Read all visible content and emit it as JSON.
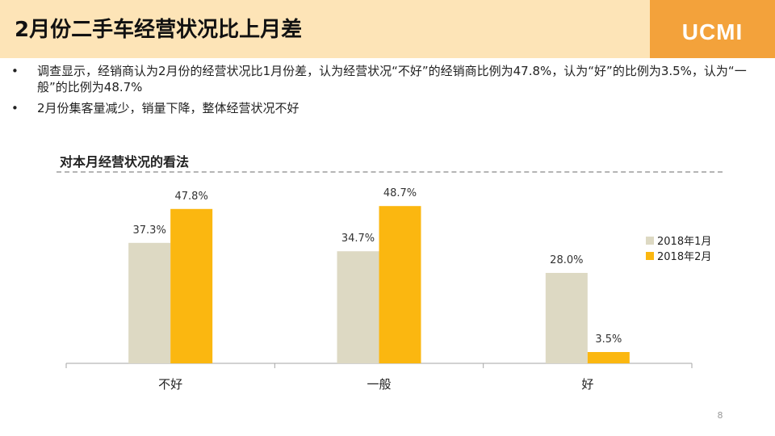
{
  "header": {
    "title": "2月份二手车经营状况比上月差",
    "logo": "UCMI"
  },
  "bullets": [
    {
      "marker": "•",
      "text": "调查显示，经销商认为2月份的经营状况比1月份差，认为经营状况“不好”的经销商比例为47.8%，认为“好”的比例为3.5%，认为“一般”的比例为48.7%"
    },
    {
      "marker": "•",
      "text": "2月份集客量减少，销量下降，整体经营状况不好"
    }
  ],
  "chart_title": "对本月经营状况的看法",
  "chart_data": {
    "type": "bar",
    "categories": [
      "不好",
      "一般",
      "好"
    ],
    "series": [
      {
        "name": "2018年1月",
        "values": [
          37.3,
          34.7,
          28.0
        ],
        "labels": [
          "37.3%",
          "34.7%",
          "28.0%"
        ],
        "color": "#ddd9c3"
      },
      {
        "name": "2018年2月",
        "values": [
          47.8,
          48.7,
          3.5
        ],
        "labels": [
          "47.8%",
          "48.7%",
          "3.5%"
        ],
        "color": "#fbb710"
      }
    ],
    "ylim": [
      0,
      60
    ],
    "grid": false,
    "legend": "right"
  },
  "colors": {
    "header_bg": "#fde4b7",
    "logo_bg": "#f3a23b",
    "axis": "#a6a6a6"
  },
  "page_number": "8"
}
